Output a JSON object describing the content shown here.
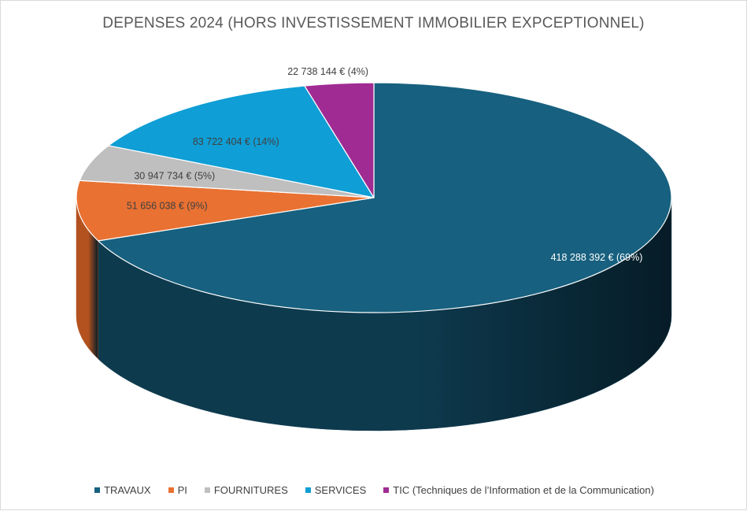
{
  "chart_data": {
    "type": "pie",
    "title": "DEPENSES 2024 (HORS INVESTISSEMENT IMMOBILIER EXPCEPTIONNEL)",
    "style": "3d",
    "legend_position": "bottom",
    "slices": [
      {
        "name": "TRAVAUX",
        "value": 418288392,
        "label": "418 288 392 € (69%)",
        "color": "#17607F",
        "side_color": "#0E3A4E"
      },
      {
        "name": "PI",
        "value": 51656038,
        "label": "51 656 038 € (9%)",
        "color": "#E97132",
        "side_color": "#B3521F"
      },
      {
        "name": "FOURNITURES",
        "value": 30947734,
        "label": "30 947 734 € (5%)",
        "color": "#BFBFBF",
        "side_color": "#8C8C8C"
      },
      {
        "name": "SERVICES",
        "value": 83722404,
        "label": "83 722 404 € (14%)",
        "color": "#0F9ED5",
        "side_color": "#0A6E96"
      },
      {
        "name": "TIC (Techniques de l’Information et de la Communication)",
        "value": 22738144,
        "label": "22 738 144 € (4%)",
        "color": "#A02B93",
        "side_color": "#6E1D65"
      }
    ]
  }
}
